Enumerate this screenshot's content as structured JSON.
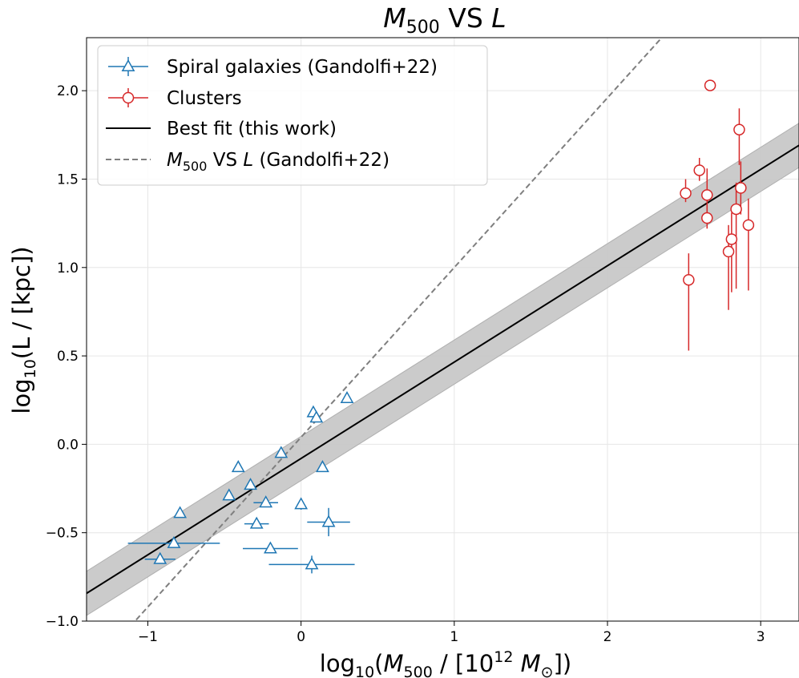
{
  "chart_data": {
    "type": "scatter",
    "title": {
      "main": "M",
      "sub": "500",
      "rest": " VS ",
      "ital": "L"
    },
    "xlabel": {
      "pre": "log",
      "presub": "10",
      "open": "(",
      "ital": "M",
      "sub": "500",
      "mid": " / [10",
      "sup": "12",
      "ital2": " M",
      "sub2": "⊙",
      "close": "])"
    },
    "ylabel": {
      "pre": "log",
      "presub": "10",
      "rest": "(L / [kpc])"
    },
    "xlim": [
      -1.4,
      3.25
    ],
    "ylim": [
      -1.0,
      2.3
    ],
    "x_ticks": [
      "−1",
      "0",
      "1",
      "2",
      "3"
    ],
    "y_ticks": [
      "−1.0",
      "−0.5",
      "0.0",
      "0.5",
      "1.0",
      "1.5",
      "2.0"
    ],
    "x_tick_values": [
      -1,
      0,
      1,
      2,
      3
    ],
    "y_tick_values": [
      -1.0,
      -0.5,
      0.0,
      0.5,
      1.0,
      1.5,
      2.0
    ],
    "grid": true,
    "legend_position": "upper-left",
    "legend": [
      {
        "label": "Spiral galaxies (Gandolfi+22)",
        "kind": "triangle",
        "color": "#1f77b4"
      },
      {
        "label": "Clusters",
        "kind": "circle",
        "color": "#d62728"
      },
      {
        "label": "Best fit (this work)",
        "kind": "line",
        "color": "#000000"
      },
      {
        "label_parts": {
          "ital": "M",
          "sub": "500",
          "rest": " VS ",
          "ital2": "L",
          "tail": " (Gandolfi+22)"
        },
        "kind": "dashed",
        "color": "#7f7f7f"
      }
    ],
    "series": [
      {
        "name": "Spiral galaxies (Gandolfi+22)",
        "marker": "triangle",
        "color": "#1f77b4",
        "points": [
          {
            "x": -0.92,
            "y": -0.65,
            "xerr": 0.1,
            "yerr": 0
          },
          {
            "x": -0.83,
            "y": -0.56,
            "xerr": 0.3,
            "yerr": 0
          },
          {
            "x": -0.79,
            "y": -0.39,
            "xerr": 0,
            "yerr": 0
          },
          {
            "x": -0.47,
            "y": -0.29,
            "xerr": 0,
            "yerr": 0
          },
          {
            "x": -0.41,
            "y": -0.13,
            "xerr": 0,
            "yerr": 0
          },
          {
            "x": -0.33,
            "y": -0.23,
            "xerr": 0,
            "yerr": 0
          },
          {
            "x": -0.29,
            "y": -0.45,
            "xerr": 0.08,
            "yerr": 0
          },
          {
            "x": -0.23,
            "y": -0.33,
            "xerr": 0.08,
            "yerr": 0
          },
          {
            "x": -0.2,
            "y": -0.59,
            "xerr": 0.18,
            "yerr": 0
          },
          {
            "x": -0.13,
            "y": -0.05,
            "xerr": 0,
            "yerr": 0
          },
          {
            "x": 0.0,
            "y": -0.34,
            "xerr": 0,
            "yerr": 0.03
          },
          {
            "x": 0.07,
            "y": -0.68,
            "xerr": 0.28,
            "yerr": 0.05
          },
          {
            "x": 0.08,
            "y": 0.18,
            "xerr": 0,
            "yerr": 0
          },
          {
            "x": 0.1,
            "y": 0.15,
            "xerr": 0,
            "yerr": 0
          },
          {
            "x": 0.14,
            "y": -0.13,
            "xerr": 0,
            "yerr": 0
          },
          {
            "x": 0.18,
            "y": -0.44,
            "xerr": 0.14,
            "yerr": 0.08
          },
          {
            "x": 0.3,
            "y": 0.26,
            "xerr": 0,
            "yerr": 0
          }
        ]
      },
      {
        "name": "Clusters",
        "marker": "circle",
        "color": "#d62728",
        "points": [
          {
            "x": 2.51,
            "y": 1.42,
            "xerr": 0,
            "yerr_lo": 0.05,
            "yerr_hi": 0.08
          },
          {
            "x": 2.53,
            "y": 0.93,
            "xerr": 0,
            "yerr_lo": 0.4,
            "yerr_hi": 0.15
          },
          {
            "x": 2.6,
            "y": 1.55,
            "xerr": 0,
            "yerr_lo": 0.06,
            "yerr_hi": 0.07
          },
          {
            "x": 2.65,
            "y": 1.41,
            "xerr": 0,
            "yerr_lo": 0.15,
            "yerr_hi": 0.15
          },
          {
            "x": 2.65,
            "y": 1.28,
            "xerr": 0,
            "yerr_lo": 0.06,
            "yerr_hi": 0.08
          },
          {
            "x": 2.67,
            "y": 2.03,
            "xerr": 0,
            "yerr_lo": 0,
            "yerr_hi": 0
          },
          {
            "x": 2.79,
            "y": 1.09,
            "xerr": 0,
            "yerr_lo": 0.33,
            "yerr_hi": 0.15
          },
          {
            "x": 2.81,
            "y": 1.16,
            "xerr": 0,
            "yerr_lo": 0.3,
            "yerr_hi": 0.15
          },
          {
            "x": 2.84,
            "y": 1.33,
            "xerr": 0,
            "yerr_lo": 0.45,
            "yerr_hi": 0.15
          },
          {
            "x": 2.86,
            "y": 1.78,
            "xerr": 0,
            "yerr_lo": 0.2,
            "yerr_hi": 0.12
          },
          {
            "x": 2.87,
            "y": 1.45,
            "xerr": 0,
            "yerr_lo": 0.15,
            "yerr_hi": 0.15
          },
          {
            "x": 2.92,
            "y": 1.24,
            "xerr": 0,
            "yerr_lo": 0.37,
            "yerr_hi": 0.15
          }
        ]
      }
    ],
    "best_fit": {
      "slope": 0.545,
      "intercept": -0.08,
      "band_halfwidth": 0.125,
      "color": "#000000",
      "band_color": "#c8c8c8"
    },
    "reference_line": {
      "slope": 0.96,
      "intercept": 0.04,
      "color": "#7f7f7f",
      "style": "dashed"
    }
  }
}
